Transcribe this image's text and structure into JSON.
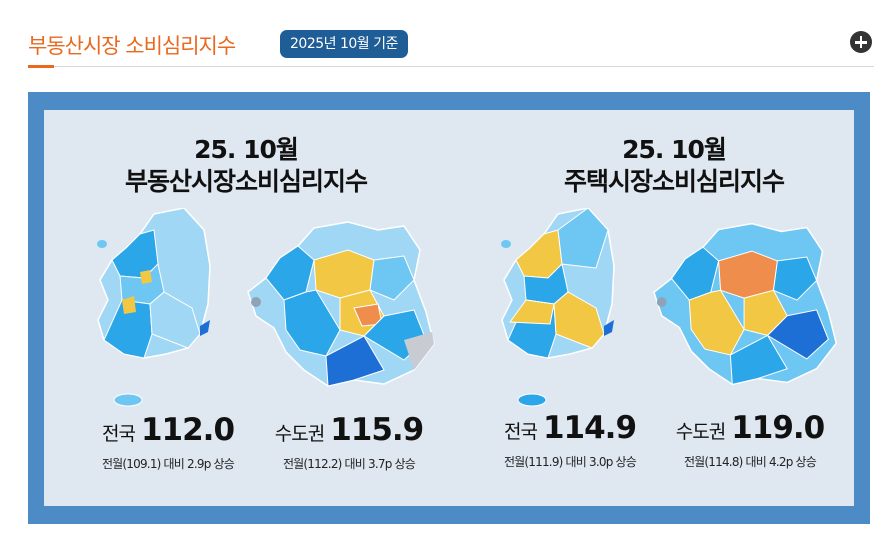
{
  "header": {
    "title": "부동산시장 소비심리지수",
    "badge": "2025년 10월 기준"
  },
  "left": {
    "title_line1": "25. 10월",
    "title_line2": "부동산시장소비심리지수",
    "national_label": "전국",
    "national_value": "112.0",
    "national_change": "전월(109.1) 대비 2.9p 상승",
    "capital_label": "수도권",
    "capital_value": "115.9",
    "capital_change": "전월(112.2) 대비 3.7p 상승"
  },
  "right": {
    "title_line1": "25. 10월",
    "title_line2": "주택시장소비심리지수",
    "national_label": "전국",
    "national_value": "114.9",
    "national_change": "전월(111.9) 대비 3.0p 상승",
    "capital_label": "수도권",
    "capital_value": "119.0",
    "capital_change": "전월(114.8) 대비 4.2p 상승"
  },
  "colors": {
    "accent": "#e8691f",
    "badge": "#1e5d96",
    "panel_border": "#4c8bc6",
    "panel_bg": "#dfe8f1"
  },
  "icons": {
    "expand": "plus-circle-icon"
  }
}
